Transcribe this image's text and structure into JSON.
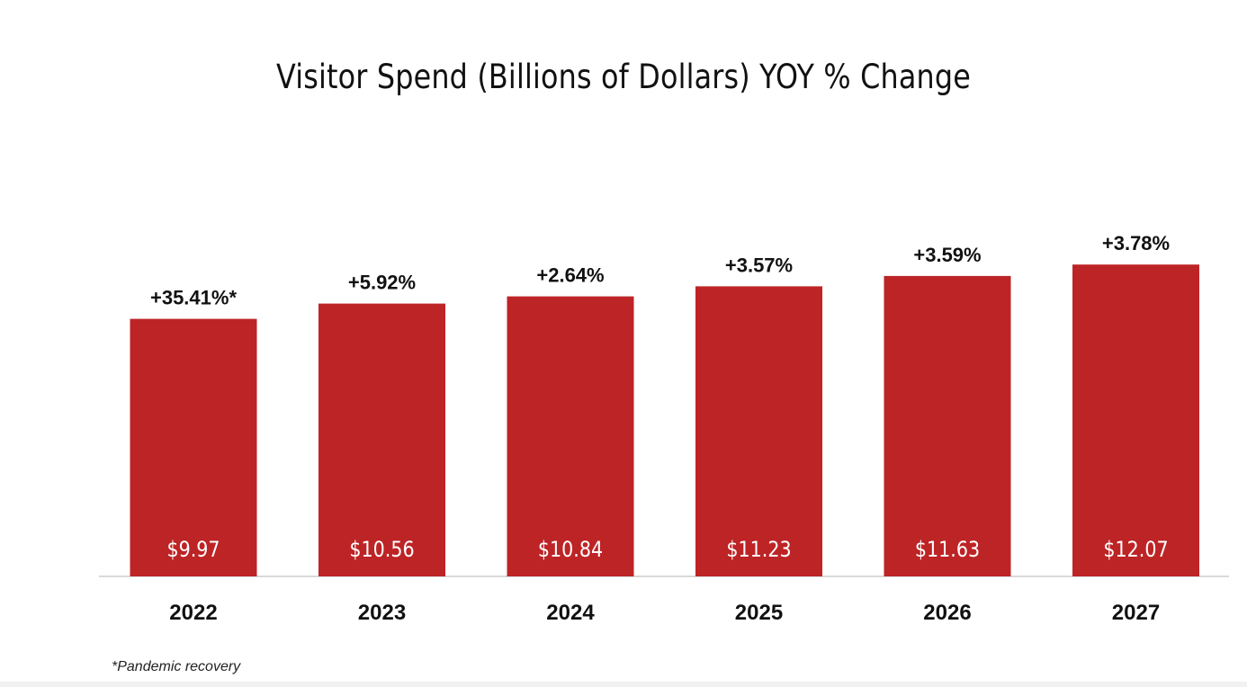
{
  "chart_data": {
    "type": "bar",
    "title": "Visitor Spend (Billions of Dollars) YOY % Change",
    "categories": [
      "2022",
      "2023",
      "2024",
      "2025",
      "2026",
      "2027"
    ],
    "values": [
      9.97,
      10.56,
      10.84,
      11.23,
      11.63,
      12.07
    ],
    "value_labels": [
      "$9.97",
      "$10.56",
      "$10.84",
      "$11.23",
      "$11.63",
      "$12.07"
    ],
    "yoy_labels": [
      "+35.41%*",
      "+5.92%",
      "+2.64%",
      "+3.57%",
      "+3.59%",
      "+3.78%"
    ],
    "xlabel": "",
    "ylabel": "",
    "ylim": [
      0,
      12.7
    ],
    "grid": false,
    "legend": "none",
    "bar_color": "#bd2426",
    "footnote": "*Pandemic recovery"
  }
}
